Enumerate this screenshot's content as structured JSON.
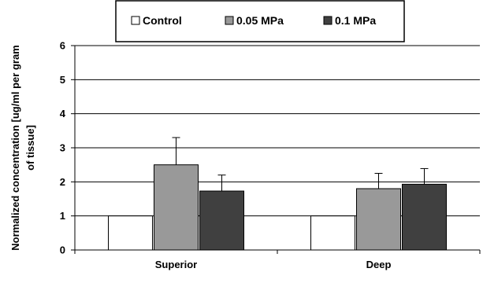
{
  "chart_data": {
    "type": "bar",
    "title": "",
    "xlabel": "",
    "ylabel_lines": [
      "Normalized concentration [ug/ml per gram",
      "of tissue]"
    ],
    "categories": [
      "Superior",
      "Deep"
    ],
    "ylim": [
      0,
      6
    ],
    "yticks": [
      "0",
      "1",
      "2",
      "3",
      "4",
      "5",
      "6"
    ],
    "grid": true,
    "legend_position": "top",
    "series": [
      {
        "name": "Control",
        "values": [
          1.0,
          1.0
        ],
        "errors": [
          0,
          0
        ],
        "color": "#ffffff"
      },
      {
        "name": "0.05 MPa",
        "values": [
          2.5,
          1.8
        ],
        "errors": [
          0.8,
          0.45
        ],
        "color": "#999999"
      },
      {
        "name": "0.1 MPa",
        "values": [
          1.73,
          1.93
        ],
        "errors": [
          0.47,
          0.46
        ],
        "color": "#404040"
      }
    ]
  }
}
